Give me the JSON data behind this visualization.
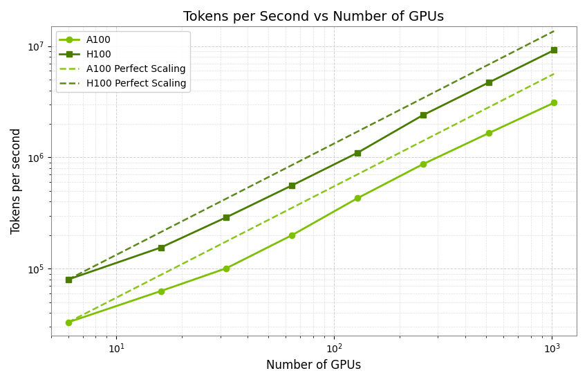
{
  "title": "Tokens per Second vs Number of GPUs",
  "xlabel": "Number of GPUs",
  "ylabel": "Tokens per second",
  "a100_gpus": [
    6,
    16,
    32,
    64,
    128,
    256,
    512,
    1024
  ],
  "a100_tps": [
    33000,
    63000,
    101000,
    200000,
    430000,
    870000,
    1650000,
    3100000
  ],
  "h100_gpus": [
    6,
    16,
    32,
    64,
    128,
    256,
    512,
    1024
  ],
  "h100_tps": [
    80000,
    155000,
    290000,
    560000,
    1100000,
    2400000,
    4700000,
    9200000
  ],
  "a100_color": "#7dc000",
  "h100_color": "#4a7c00",
  "xlim": [
    5,
    1300
  ],
  "ylim": [
    25000,
    15000000
  ],
  "background_color": "#ffffff",
  "grid_color": "#cccccc"
}
